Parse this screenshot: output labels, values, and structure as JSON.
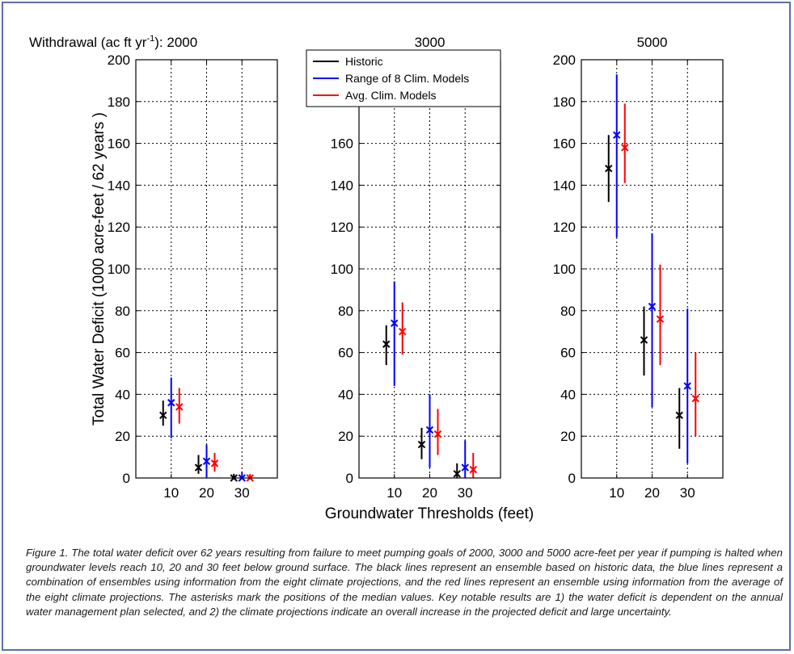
{
  "chart_data": {
    "type": "errorbar",
    "ylabel": "Total Water Deficit (1000 acre-feet / 62 years )",
    "xlabel": "Groundwater Thresholds (feet)",
    "ylim": [
      0,
      200
    ],
    "yticks_first_panel": [
      0,
      20,
      40,
      60,
      80,
      100,
      120,
      140,
      160,
      180,
      200
    ],
    "yticks_middle_panel": [
      0,
      20,
      40,
      60,
      80,
      100,
      120,
      140,
      160
    ],
    "categories": [
      "10",
      "20",
      "30"
    ],
    "grid": true,
    "legend_placement": "top (middle panel)",
    "legend": [
      {
        "name": "Historic",
        "color": "#000000"
      },
      {
        "name": "Range of 8 Clim. Models",
        "color": "#0000ff"
      },
      {
        "name": "Avg. Clim. Models",
        "color": "#ff0000"
      }
    ],
    "panels": [
      {
        "title": "2000",
        "title_prefix": "Withdrawal (ac ft yr",
        "title_superscript": "-1",
        "title_suffix": "): ",
        "series": [
          {
            "name": "Historic",
            "color": "#000000",
            "median": [
              30,
              5,
              0
            ],
            "low": [
              25,
              2,
              0
            ],
            "high": [
              37,
              11,
              2
            ]
          },
          {
            "name": "Range of 8 Clim. Models",
            "color": "#0000ff",
            "median": [
              36,
              8,
              0
            ],
            "low": [
              19,
              0,
              0
            ],
            "high": [
              48,
              16,
              3
            ]
          },
          {
            "name": "Avg. Clim. Models",
            "color": "#ff0000",
            "median": [
              34,
              7,
              0
            ],
            "low": [
              26,
              3,
              0
            ],
            "high": [
              43,
              12,
              2
            ]
          }
        ]
      },
      {
        "title": "3000",
        "series": [
          {
            "name": "Historic",
            "color": "#000000",
            "median": [
              64,
              16,
              2
            ],
            "low": [
              54,
              9,
              0
            ],
            "high": [
              73,
              24,
              7
            ]
          },
          {
            "name": "Range of 8 Clim. Models",
            "color": "#0000ff",
            "median": [
              74,
              23,
              5
            ],
            "low": [
              44,
              5,
              0
            ],
            "high": [
              94,
              40,
              18
            ]
          },
          {
            "name": "Avg. Clim. Models",
            "color": "#ff0000",
            "median": [
              70,
              21,
              4
            ],
            "low": [
              59,
              11,
              0
            ],
            "high": [
              84,
              33,
              12
            ]
          }
        ]
      },
      {
        "title": "5000",
        "series": [
          {
            "name": "Historic",
            "color": "#000000",
            "median": [
              148,
              66,
              30
            ],
            "low": [
              132,
              49,
              14
            ],
            "high": [
              164,
              82,
              43
            ]
          },
          {
            "name": "Range of 8 Clim. Models",
            "color": "#0000ff",
            "median": [
              164,
              82,
              44
            ],
            "low": [
              115,
              34,
              7
            ],
            "high": [
              193,
              117,
              81
            ]
          },
          {
            "name": "Avg. Clim. Models",
            "color": "#ff0000",
            "median": [
              158,
              76,
              38
            ],
            "low": [
              141,
              54,
              20
            ],
            "high": [
              179,
              102,
              60
            ]
          }
        ]
      }
    ]
  },
  "caption": "Figure 1. The total water deficit over 62 years resulting from failure to meet pumping goals of 2000, 3000 and 5000 acre-feet per year if pumping is halted when groundwater levels reach 10, 20 and 30 feet below ground surface. The black lines represent an ensemble based on historic data, the blue lines represent a combination of ensembles using information from the eight climate projections, and the red lines represent an ensemble using information from the average of the eight climate projections. The asterisks mark the positions of the median values. Key notable results are 1) the water deficit is dependent on the annual water management plan selected, and 2) the climate projections indicate an overall increase in the projected deficit and large uncertainty.",
  "colors": {
    "frame": "#5b6fa6",
    "historic": "#000000",
    "range": "#0000ff",
    "avg": "#ff0000"
  }
}
